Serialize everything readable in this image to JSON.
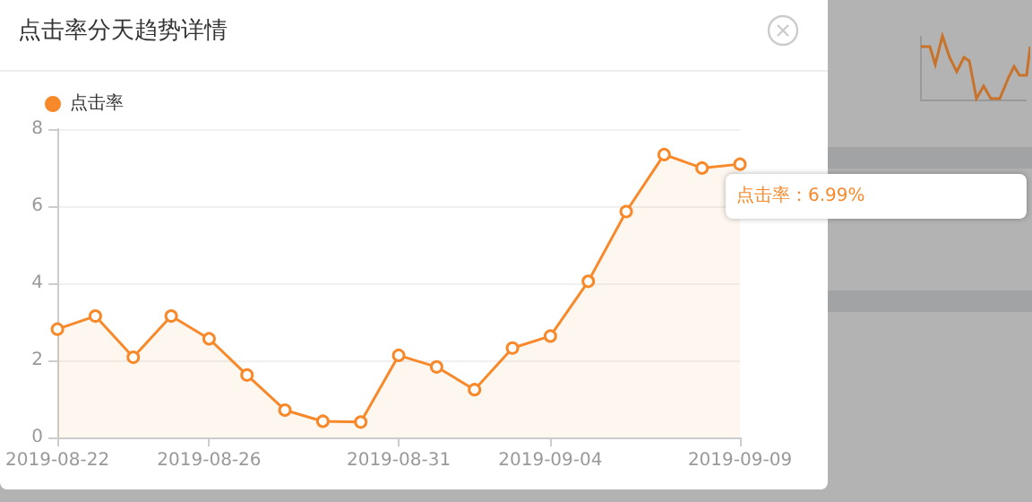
{
  "chart_data": {
    "type": "area",
    "title": "点击率分天趋势详情",
    "categories": [
      "2019-08-22",
      null,
      null,
      null,
      "2019-08-26",
      null,
      null,
      null,
      null,
      "2019-08-31",
      null,
      null,
      null,
      "2019-09-04",
      null,
      null,
      null,
      null,
      "2019-09-09"
    ],
    "series": [
      {
        "name": "点击率",
        "color": "#f7892b",
        "values": [
          2.81,
          3.15,
          2.08,
          3.15,
          2.56,
          1.62,
          0.71,
          0.42,
          0.4,
          2.13,
          1.83,
          1.24,
          2.32,
          2.63,
          4.05,
          5.86,
          7.34,
          6.99,
          7.09
        ]
      }
    ],
    "ylim": [
      0,
      8
    ],
    "yticks": [
      0,
      2,
      4,
      6,
      8
    ],
    "grid": "y",
    "legend": "top left",
    "marker": "circle",
    "annotations": [
      "点击率：6.99%"
    ]
  }
}
